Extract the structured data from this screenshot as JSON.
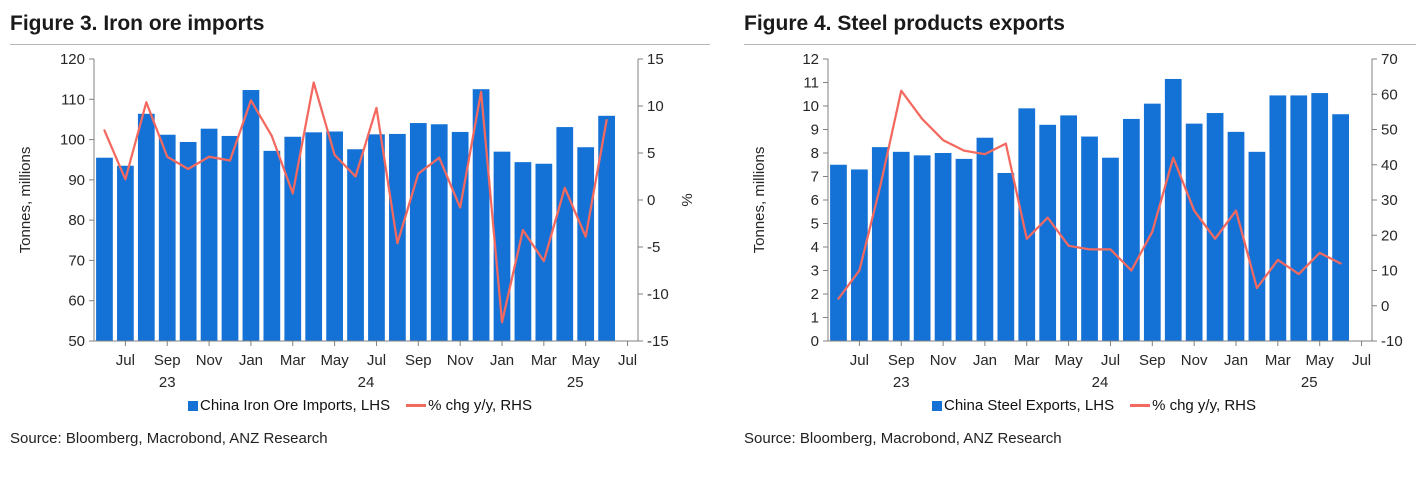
{
  "colors": {
    "bar": "#1472d6",
    "line": "#f4695f",
    "axis": "#808080",
    "text": "#262626"
  },
  "chart_data": [
    {
      "type": "bar",
      "title": "Figure 3. Iron ore imports",
      "x_months": [
        "Jun-23",
        "Jul-23",
        "Aug-23",
        "Sep-23",
        "Oct-23",
        "Nov-23",
        "Dec-23",
        "Jan-24",
        "Feb-24",
        "Mar-24",
        "Apr-24",
        "May-24",
        "Jun-24",
        "Jul-24",
        "Aug-24",
        "Sep-24",
        "Oct-24",
        "Nov-24",
        "Dec-24",
        "Jan-25",
        "Feb-25",
        "Mar-25",
        "Apr-25",
        "May-25",
        "Jun-25"
      ],
      "x_tick_labels": [
        "Jul",
        "Sep",
        "Nov",
        "Jan",
        "Mar",
        "May",
        "Jul",
        "Sep",
        "Nov",
        "Jan",
        "Mar",
        "May",
        "Jul"
      ],
      "year_labels": [
        "23",
        "24",
        "25"
      ],
      "bar_series": {
        "name": "China Iron Ore Imports, LHS",
        "axis": "left",
        "values": [
          95.5,
          93.5,
          106.4,
          101.2,
          99.4,
          102.7,
          100.9,
          112.3,
          97.2,
          100.7,
          101.8,
          102.0,
          97.6,
          101.3,
          101.4,
          104.1,
          103.8,
          101.9,
          112.5,
          97.0,
          94.4,
          94.0,
          103.1,
          98.1,
          105.9
        ]
      },
      "line_series": {
        "name": "% chg y/y, RHS",
        "axis": "right",
        "values": [
          7.4,
          2.2,
          10.4,
          4.6,
          3.3,
          4.6,
          4.2,
          10.6,
          6.8,
          0.7,
          12.5,
          4.8,
          2.5,
          9.8,
          -4.6,
          2.8,
          4.5,
          -0.8,
          11.5,
          -13.0,
          -3.2,
          -6.5,
          1.3,
          -3.9,
          8.5
        ]
      },
      "left_axis": {
        "label": "Tonnes, millions",
        "min": 50,
        "max": 120,
        "step": 10
      },
      "right_axis": {
        "label": "%",
        "min": -15,
        "max": 15,
        "step": 5
      },
      "source": "Source: Bloomberg, Macrobond, ANZ Research"
    },
    {
      "type": "bar",
      "title": "Figure 4. Steel products exports",
      "x_months": [
        "Jun-23",
        "Jul-23",
        "Aug-23",
        "Sep-23",
        "Oct-23",
        "Nov-23",
        "Dec-23",
        "Jan-24",
        "Feb-24",
        "Mar-24",
        "Apr-24",
        "May-24",
        "Jun-24",
        "Jul-24",
        "Aug-24",
        "Sep-24",
        "Oct-24",
        "Nov-24",
        "Dec-24",
        "Jan-25",
        "Feb-25",
        "Mar-25",
        "Apr-25",
        "May-25",
        "Jun-25"
      ],
      "x_tick_labels": [
        "Jul",
        "Sep",
        "Nov",
        "Jan",
        "Mar",
        "May",
        "Jul",
        "Sep",
        "Nov",
        "Jan",
        "Mar",
        "May",
        "Jul"
      ],
      "year_labels": [
        "23",
        "24",
        "25"
      ],
      "bar_series": {
        "name": "China Steel Exports, LHS",
        "axis": "left",
        "values": [
          7.5,
          7.3,
          8.25,
          8.05,
          7.9,
          8.0,
          7.75,
          8.65,
          7.15,
          9.9,
          9.2,
          9.6,
          8.7,
          7.8,
          9.45,
          10.1,
          11.15,
          9.25,
          9.7,
          8.9,
          8.05,
          10.45,
          10.45,
          10.55,
          9.65
        ]
      },
      "line_series": {
        "name": "% chg y/y, RHS",
        "axis": "right",
        "values": [
          2,
          10,
          34,
          61,
          53,
          47,
          44,
          43,
          46,
          19,
          25,
          17,
          16,
          16,
          10,
          21,
          42,
          27,
          19,
          27,
          5,
          13,
          9,
          15,
          12
        ]
      },
      "left_axis": {
        "label": "Tonnes, millions",
        "min": 0,
        "max": 12,
        "step": 1
      },
      "right_axis": {
        "label": "",
        "min": -10,
        "max": 70,
        "step": 10
      },
      "source": "Source: Bloomberg, Macrobond, ANZ Research"
    }
  ]
}
